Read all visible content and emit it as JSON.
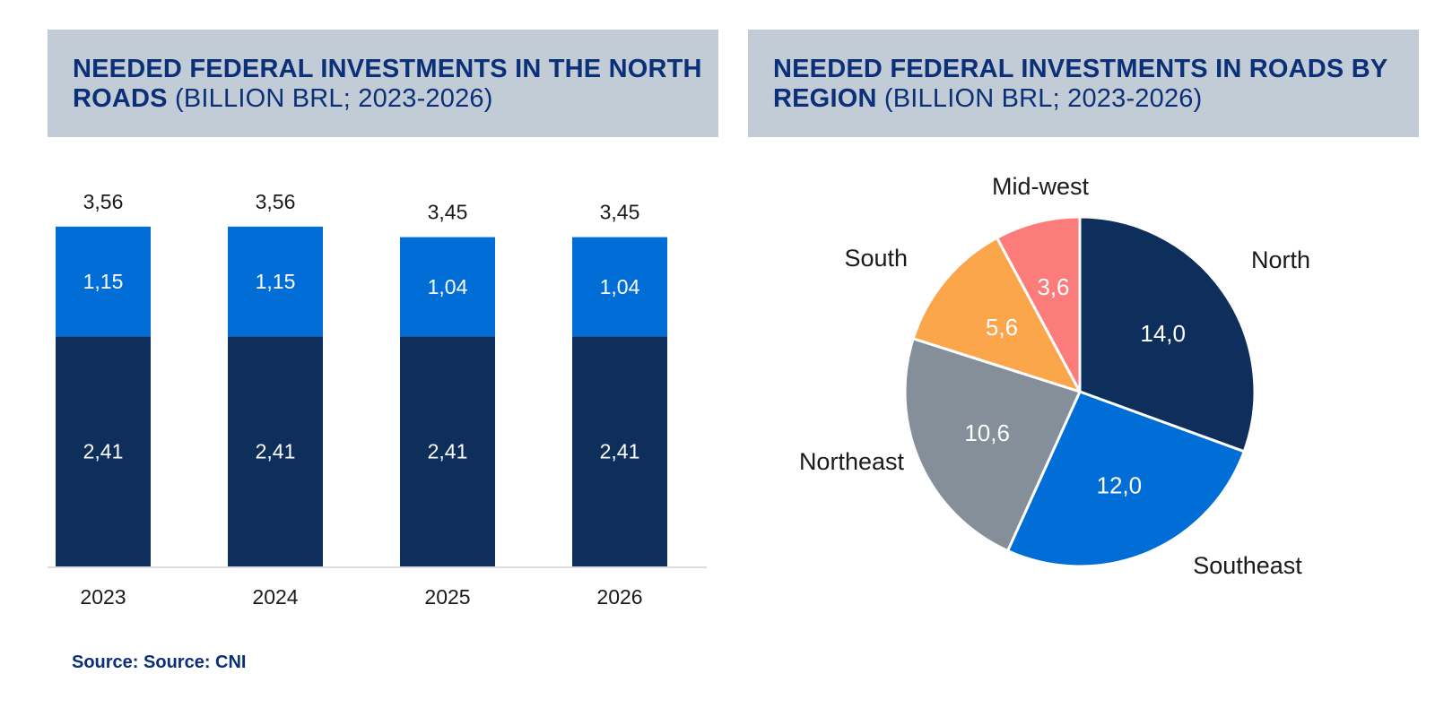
{
  "headers": {
    "left": {
      "bold": "NEEDED FEDERAL INVESTMENTS IN THE NORTH ROADS",
      "unit": "(BILLION BRL; 2023-2026)"
    },
    "right": {
      "bold": "NEEDED FEDERAL INVESTMENTS IN ROADS BY REGION",
      "unit": "(BILLION BRL; 2023-2026)"
    }
  },
  "source": "Source: Source: CNI",
  "colors": {
    "header_bg": "#c1ccd7",
    "title_text": "#0b3077",
    "dark_navy": "#0e2e5c",
    "bright_blue": "#006ed6",
    "gray": "#848f99",
    "orange": "#fba64b",
    "salmon": "#fc7c7c"
  },
  "chart_data": [
    {
      "type": "bar",
      "stacked": true,
      "categories": [
        "2023",
        "2024",
        "2025",
        "2026"
      ],
      "series": [
        {
          "values": [
            2.41,
            2.41,
            2.41,
            2.41
          ],
          "labels": [
            "2,41",
            "2,41",
            "2,41",
            "2,41"
          ],
          "color": "#0e2e5c"
        },
        {
          "values": [
            1.15,
            1.15,
            1.04,
            1.04
          ],
          "labels": [
            "1,15",
            "1,15",
            "1,04",
            "1,04"
          ],
          "color": "#006ed6"
        }
      ],
      "totals": [
        3.56,
        3.56,
        3.45,
        3.45
      ],
      "total_labels": [
        "3,56",
        "3,56",
        "3,45",
        "3,45"
      ]
    },
    {
      "type": "pie",
      "slices": [
        {
          "name": "North",
          "value": 14.0,
          "label": "14,0",
          "color": "#0e2e5c"
        },
        {
          "name": "Southeast",
          "value": 12.0,
          "label": "12,0",
          "color": "#006ed6"
        },
        {
          "name": "Northeast",
          "value": 10.6,
          "label": "10,6",
          "color": "#848f99"
        },
        {
          "name": "South",
          "value": 5.6,
          "label": "5,6",
          "color": "#fba64b"
        },
        {
          "name": "Mid-west",
          "value": 3.6,
          "label": "3,6",
          "color": "#fc7c7c"
        }
      ]
    }
  ]
}
